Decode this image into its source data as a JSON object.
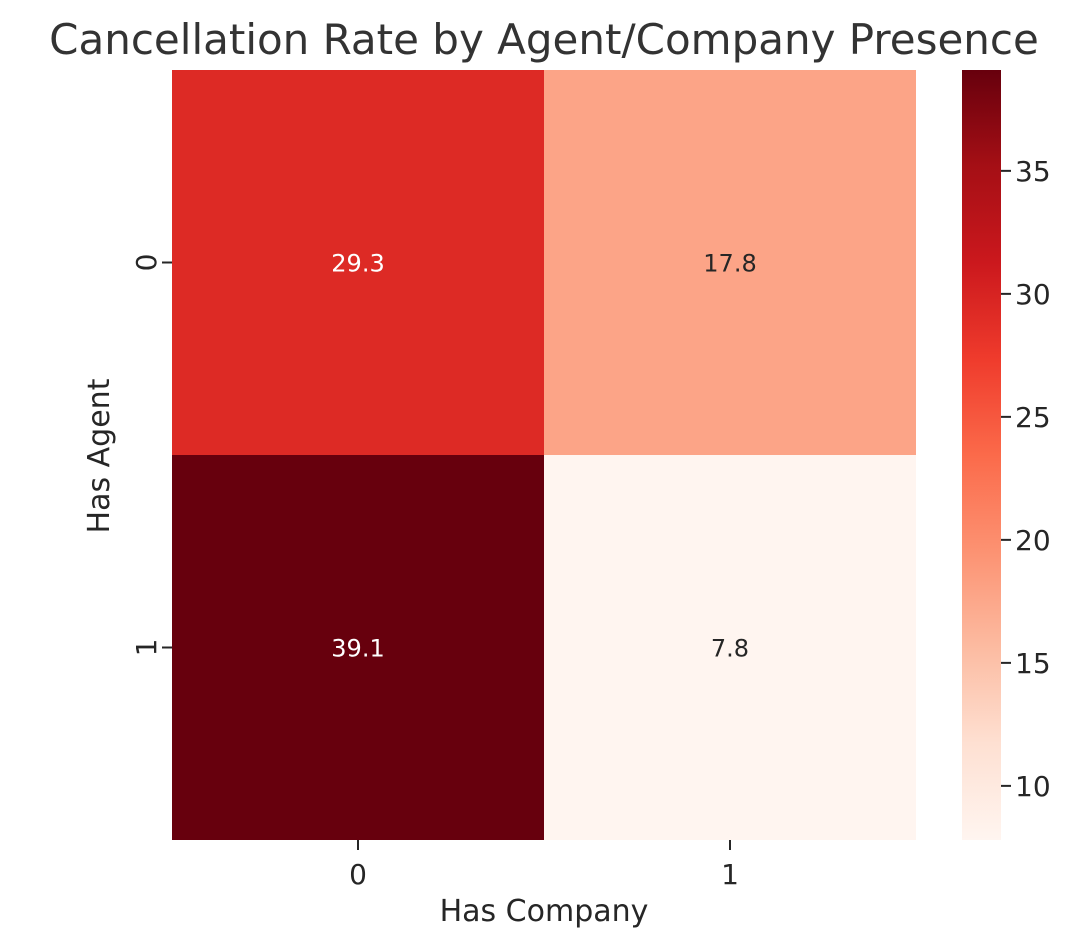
{
  "chart_data": {
    "type": "heatmap",
    "title": "Cancellation Rate by Agent/Company Presence",
    "xlabel": "Has Company",
    "ylabel": "Has Agent",
    "x_categories": [
      "0",
      "1"
    ],
    "y_categories": [
      "0",
      "1"
    ],
    "values": [
      [
        29.3,
        17.8
      ],
      [
        39.1,
        7.8
      ]
    ],
    "cell_labels": [
      [
        "29.3",
        "17.8"
      ],
      [
        "39.1",
        "7.8"
      ]
    ],
    "colormap": "Reds",
    "colorbar": {
      "range": [
        7.8,
        39.1
      ],
      "ticks": [
        10,
        15,
        20,
        25,
        30,
        35
      ],
      "tick_labels": [
        "10",
        "15",
        "20",
        "25",
        "30",
        "35"
      ]
    },
    "grid": false
  }
}
